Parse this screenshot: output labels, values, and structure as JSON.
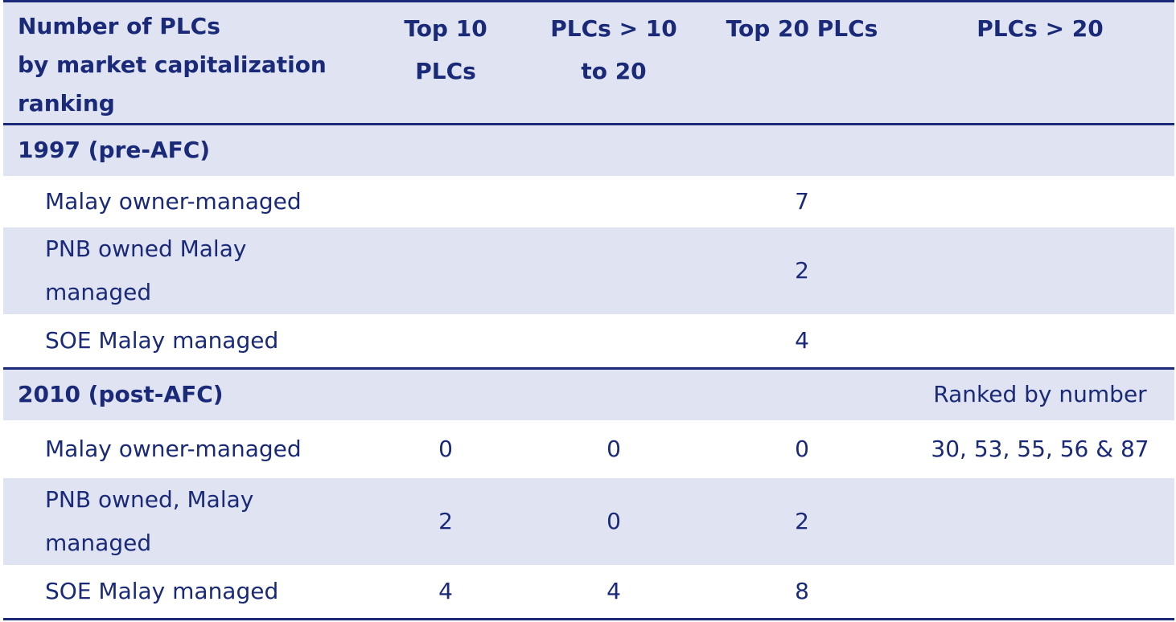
{
  "table": {
    "headers": [
      "Number of PLCs\nby market capitalization\nranking",
      "Top 10\nPLCs",
      "PLCs > 10\nto 20",
      "Top 20 PLCs",
      "PLCs > 20"
    ],
    "sections": [
      {
        "title": "1997 (pre-AFC)",
        "note": "",
        "rows": [
          {
            "label": "Malay owner-managed",
            "values": [
              "",
              "",
              "7",
              ""
            ]
          },
          {
            "label": "PNB owned Malay managed",
            "values": [
              "",
              "",
              "2",
              ""
            ]
          },
          {
            "label": "SOE Malay managed",
            "values": [
              "",
              "",
              "4",
              ""
            ]
          }
        ]
      },
      {
        "title": "2010 (post-AFC)",
        "note": "Ranked by number",
        "rows": [
          {
            "label": "Malay owner-managed",
            "values": [
              "0",
              "0",
              "0",
              "30, 53, 55, 56 & 87"
            ]
          },
          {
            "label": "PNB owned, Malay managed",
            "values": [
              "2",
              "0",
              "2",
              ""
            ]
          },
          {
            "label": "SOE Malay managed",
            "values": [
              "4",
              "4",
              "8",
              ""
            ]
          }
        ]
      }
    ]
  },
  "colors": {
    "text": "#1a2a78",
    "shade": "#dfe3f2",
    "rule": "#1a2a78"
  }
}
